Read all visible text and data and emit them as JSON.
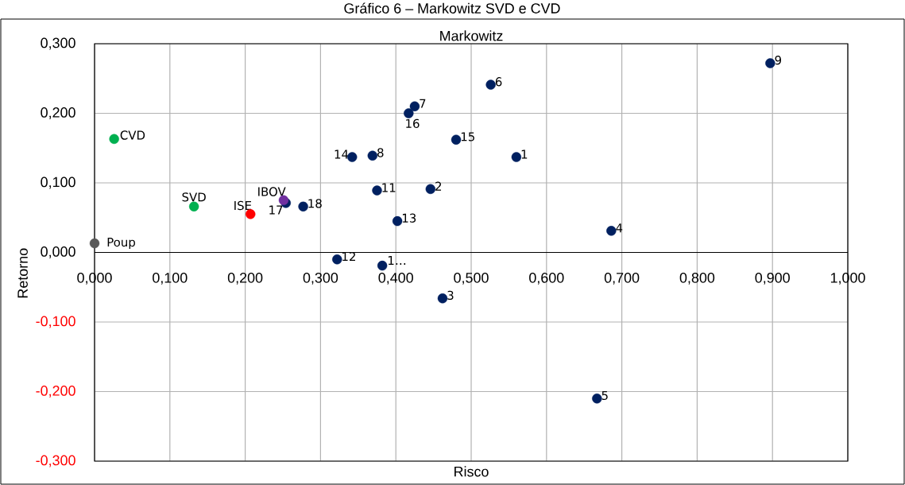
{
  "chart_data": {
    "type": "scatter",
    "title": "Gráfico 6 – Markowitz SVD e CVD",
    "subtitle": "Markowitz",
    "xlabel": "Risco",
    "ylabel": "Retorno",
    "xlim": [
      0,
      1
    ],
    "ylim": [
      -0.3,
      0.3
    ],
    "xticks": [
      {
        "value": 0,
        "label": "0,000"
      },
      {
        "value": 0.1,
        "label": "0,100"
      },
      {
        "value": 0.2,
        "label": "0,200"
      },
      {
        "value": 0.3,
        "label": "0,300"
      },
      {
        "value": 0.4,
        "label": "0,400"
      },
      {
        "value": 0.5,
        "label": "0,500"
      },
      {
        "value": 0.6,
        "label": "0,600"
      },
      {
        "value": 0.7,
        "label": "0,700"
      },
      {
        "value": 0.8,
        "label": "0,800"
      },
      {
        "value": 0.9,
        "label": "0,900"
      },
      {
        "value": 1,
        "label": "1,000"
      }
    ],
    "yticks": [
      {
        "value": -0.3,
        "label": "-0,300"
      },
      {
        "value": -0.2,
        "label": "-0,200"
      },
      {
        "value": -0.1,
        "label": "-0,100"
      },
      {
        "value": 0,
        "label": "0,000"
      },
      {
        "value": 0.1,
        "label": "0,100"
      },
      {
        "value": 0.2,
        "label": "0,200"
      },
      {
        "value": 0.3,
        "label": "0,300"
      }
    ],
    "grid": true,
    "marker": "circle",
    "series": [
      {
        "color": "#002060",
        "x": [
          0.56,
          0.446,
          0.462,
          0.686,
          0.667,
          0.526,
          0.425,
          0.369,
          0.897,
          0.375,
          0.322,
          0.402,
          0.342,
          0.48,
          0.417,
          0.254,
          0.277,
          0.382
        ],
        "values": [
          0.137,
          0.091,
          -0.066,
          0.031,
          -0.21,
          0.241,
          0.21,
          0.139,
          0.272,
          0.089,
          -0.01,
          0.045,
          0.137,
          0.162,
          0.2,
          0.071,
          0.066,
          -0.019
        ]
      },
      {
        "color": "#00b050",
        "x": [
          0.026,
          0.132
        ],
        "values": [
          0.163,
          0.066
        ]
      },
      {
        "color": "#ff0000",
        "x": [
          0.207
        ],
        "values": [
          0.055
        ]
      },
      {
        "color": "#7030a0",
        "x": [
          0.251
        ],
        "values": [
          0.075
        ]
      },
      {
        "color": "#595959",
        "x": [
          0.0
        ],
        "values": [
          0.013
        ]
      }
    ],
    "annotations": [
      {
        "text": "1",
        "x": 0.56,
        "y": 0.137
      },
      {
        "text": "2",
        "x": 0.446,
        "y": 0.091
      },
      {
        "text": "3",
        "x": 0.462,
        "y": -0.066
      },
      {
        "text": "4",
        "x": 0.686,
        "y": 0.031
      },
      {
        "text": "5",
        "x": 0.667,
        "y": -0.21
      },
      {
        "text": "6",
        "x": 0.526,
        "y": 0.241
      },
      {
        "text": "7",
        "x": 0.425,
        "y": 0.21
      },
      {
        "text": "8",
        "x": 0.369,
        "y": 0.139
      },
      {
        "text": "9",
        "x": 0.897,
        "y": 0.272
      },
      {
        "text": "11",
        "x": 0.375,
        "y": 0.089
      },
      {
        "text": "12",
        "x": 0.322,
        "y": -0.01
      },
      {
        "text": "13",
        "x": 0.402,
        "y": 0.045
      },
      {
        "text": "14",
        "x": 0.342,
        "y": 0.137
      },
      {
        "text": "15",
        "x": 0.48,
        "y": 0.162
      },
      {
        "text": "16",
        "x": 0.417,
        "y": 0.2
      },
      {
        "text": "17",
        "x": 0.254,
        "y": 0.071
      },
      {
        "text": "18",
        "x": 0.277,
        "y": 0.066
      },
      {
        "text": "1…",
        "x": 0.382,
        "y": -0.019
      },
      {
        "text": "CVD",
        "x": 0.026,
        "y": 0.163
      },
      {
        "text": "SVD",
        "x": 0.132,
        "y": 0.066
      },
      {
        "text": "ISE",
        "x": 0.207,
        "y": 0.055
      },
      {
        "text": "IBOV",
        "x": 0.251,
        "y": 0.075
      },
      {
        "text": "Poup",
        "x": 0.0,
        "y": 0.013
      }
    ]
  }
}
